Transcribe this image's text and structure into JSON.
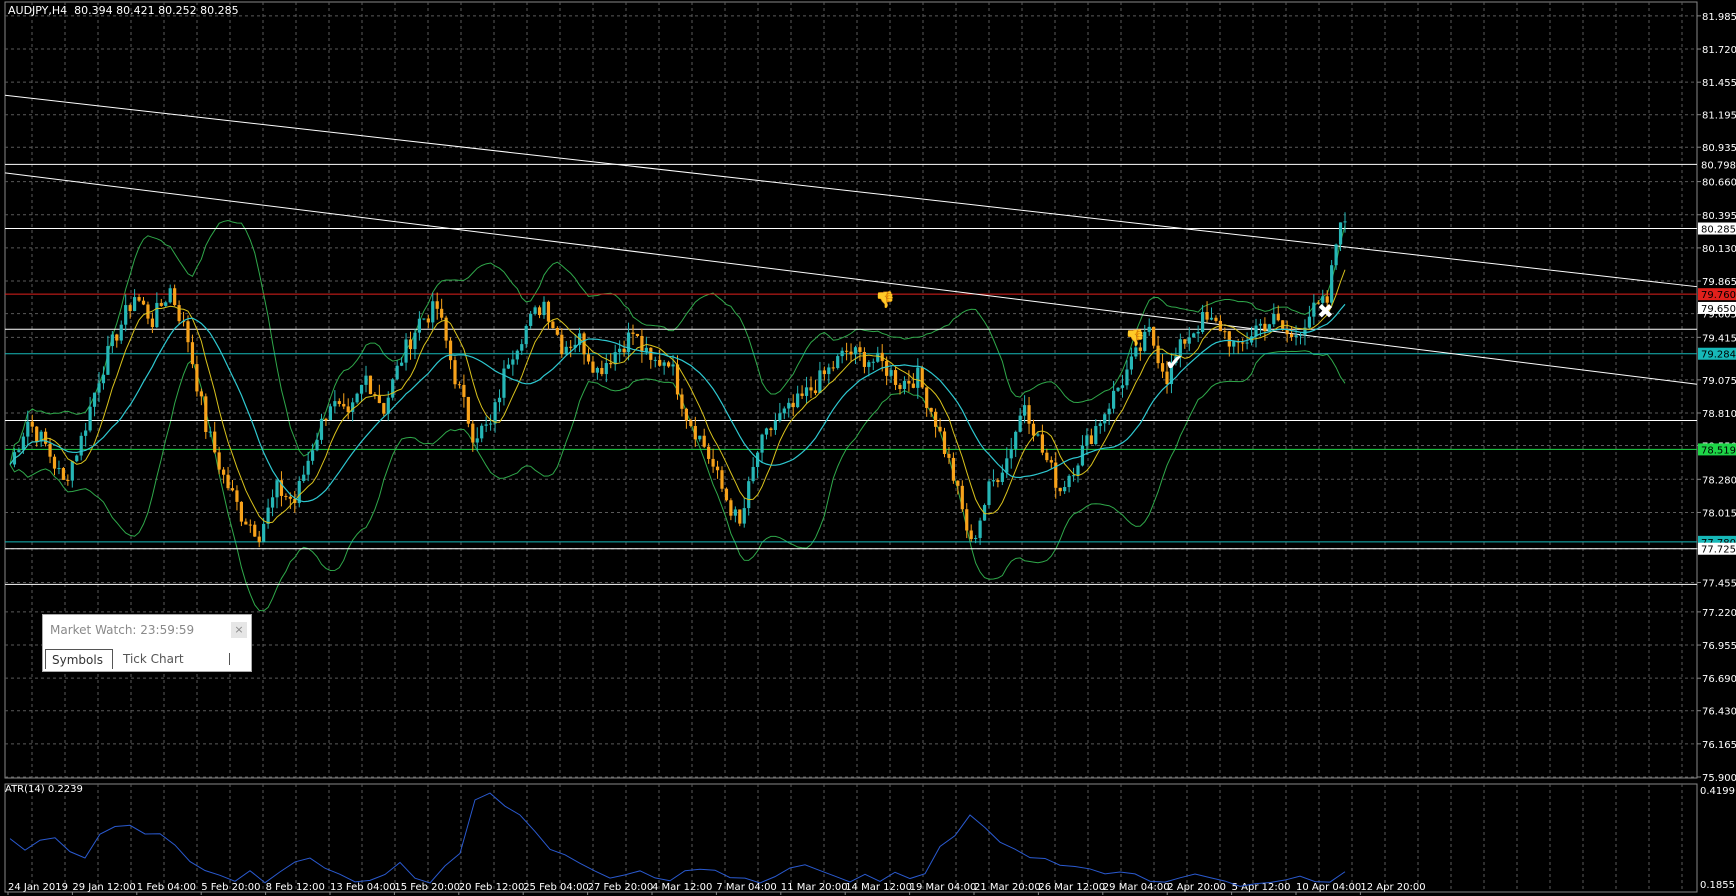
{
  "header": {
    "symbol": "AUDJPY,H4",
    "ohlc": "80.394 80.421 80.252 80.285"
  },
  "atr": {
    "label": "ATR(14) 0.2239",
    "max_label": "0.4199",
    "min_label": "0.1855"
  },
  "market_watch": {
    "title": "Market Watch: 23:59:59",
    "close": "×",
    "tabs": [
      "Symbols",
      "Tick Chart"
    ]
  },
  "colors": {
    "background": "#000000",
    "bull": "#26b6b6",
    "bear": "#f7a21b",
    "grid": "#5a5a5a",
    "bollinger": "#2fa84a",
    "ma_fast": "#d9c21c",
    "ma_slow": "#2ec8d0",
    "atr_line": "#2a5ad0",
    "resistance": "#e0201c",
    "support_green": "#1ed548",
    "support_cyan": "#16b8b8"
  },
  "icons": [
    "thumbs-down-icon",
    "thumbs-down-icon",
    "checkmark-icon",
    "cross-icon"
  ],
  "chart_data": {
    "type": "candlestick",
    "symbol": "AUDJPY",
    "timeframe": "H4",
    "ylim": [
      75.9,
      82.1
    ],
    "price_ticks": [
      "81.985",
      "81.720",
      "81.455",
      "81.195",
      "80.935",
      "80.660",
      "80.395",
      "80.130",
      "79.865",
      "79.605",
      "79.415",
      "79.075",
      "78.810",
      "78.550",
      "78.280",
      "78.015",
      "77.725",
      "77.455",
      "77.220",
      "76.955",
      "76.690",
      "76.430",
      "76.165",
      "75.900"
    ],
    "price_labels": [
      {
        "price": 80.798,
        "text": "80.798",
        "bg": "#000000",
        "fg": "#ffffff"
      },
      {
        "price": 80.285,
        "text": "80.285",
        "bg": "#ffffff",
        "fg": "#000000"
      },
      {
        "price": 79.76,
        "text": "79.760",
        "bg": "#e0201c",
        "fg": "#000000"
      },
      {
        "price": 79.65,
        "text": "79.650",
        "bg": "#ffffff",
        "fg": "#000000"
      },
      {
        "price": 79.284,
        "text": "79.284",
        "bg": "#16b8b8",
        "fg": "#000000"
      },
      {
        "price": 78.519,
        "text": "78.519",
        "bg": "#1ed548",
        "fg": "#000000"
      },
      {
        "price": 77.78,
        "text": "77.780",
        "bg": "#16b8b8",
        "fg": "#000000"
      },
      {
        "price": 77.725,
        "text": "77.725",
        "bg": "#ffffff",
        "fg": "#000000"
      }
    ],
    "x_labels": [
      "24 Jan 2019",
      "29 Jan 12:00",
      "1 Feb 04:00",
      "5 Feb 20:00",
      "8 Feb 12:00",
      "13 Feb 04:00",
      "15 Feb 20:00",
      "20 Feb 12:00",
      "25 Feb 04:00",
      "27 Feb 20:00",
      "4 Mar 12:00",
      "7 Mar 04:00",
      "11 Mar 20:00",
      "14 Mar 12:00",
      "19 Mar 04:00",
      "21 Mar 20:00",
      "26 Mar 12:00",
      "29 Mar 04:00",
      "2 Apr 20:00",
      "5 Apr 12:00",
      "10 Apr 04:00",
      "12 Apr 20:00"
    ],
    "horizontal_levels": [
      {
        "price": 80.798,
        "color": "#ffffff"
      },
      {
        "price": 80.285,
        "color": "#ffffff"
      },
      {
        "price": 79.76,
        "color": "#e0201c"
      },
      {
        "price": 79.48,
        "color": "#ffffff"
      },
      {
        "price": 79.284,
        "color": "#16b8b8"
      },
      {
        "price": 78.75,
        "color": "#ffffff"
      },
      {
        "price": 78.519,
        "color": "#1ed548"
      },
      {
        "price": 77.78,
        "color": "#16b8b8"
      },
      {
        "price": 77.725,
        "color": "#ffffff"
      },
      {
        "price": 77.44,
        "color": "#ffffff"
      }
    ],
    "trendlines": [
      {
        "from": [
          "24 Jan 2019",
          81.37
        ],
        "to": [
          "12 Apr 20:00",
          79.77
        ]
      },
      {
        "from": [
          "24 Jan 2019",
          80.73
        ],
        "to": [
          "12 Apr 20:00",
          79.33
        ]
      }
    ],
    "close_path": [
      [
        0,
        78.4
      ],
      [
        4,
        78.75
      ],
      [
        8,
        78.55
      ],
      [
        12,
        78.25
      ],
      [
        16,
        78.6
      ],
      [
        20,
        79.1
      ],
      [
        24,
        79.45
      ],
      [
        28,
        79.75
      ],
      [
        32,
        79.55
      ],
      [
        36,
        79.8
      ],
      [
        40,
        79.4
      ],
      [
        44,
        78.7
      ],
      [
        48,
        78.3
      ],
      [
        52,
        78.0
      ],
      [
        56,
        77.85
      ],
      [
        60,
        78.2
      ],
      [
        64,
        78.1
      ],
      [
        68,
        78.55
      ],
      [
        72,
        78.9
      ],
      [
        76,
        78.75
      ],
      [
        80,
        79.1
      ],
      [
        84,
        78.85
      ],
      [
        88,
        79.25
      ],
      [
        92,
        79.55
      ],
      [
        96,
        79.65
      ],
      [
        100,
        79.1
      ],
      [
        104,
        78.65
      ],
      [
        108,
        78.7
      ],
      [
        112,
        79.25
      ],
      [
        116,
        79.5
      ],
      [
        120,
        79.7
      ],
      [
        124,
        79.35
      ],
      [
        128,
        79.4
      ],
      [
        132,
        79.15
      ],
      [
        136,
        79.3
      ],
      [
        140,
        79.45
      ],
      [
        144,
        79.2
      ],
      [
        148,
        79.25
      ],
      [
        152,
        78.8
      ],
      [
        156,
        78.55
      ],
      [
        160,
        78.2
      ],
      [
        164,
        77.9
      ],
      [
        168,
        78.5
      ],
      [
        172,
        78.75
      ],
      [
        176,
        78.85
      ],
      [
        180,
        79.0
      ],
      [
        184,
        79.15
      ],
      [
        188,
        79.3
      ],
      [
        192,
        79.25
      ],
      [
        196,
        79.2
      ],
      [
        200,
        79.05
      ],
      [
        204,
        79.1
      ],
      [
        208,
        78.75
      ],
      [
        212,
        78.3
      ],
      [
        216,
        77.75
      ],
      [
        220,
        78.2
      ],
      [
        224,
        78.45
      ],
      [
        228,
        78.9
      ],
      [
        232,
        78.5
      ],
      [
        236,
        78.2
      ],
      [
        240,
        78.45
      ],
      [
        244,
        78.7
      ],
      [
        248,
        78.95
      ],
      [
        252,
        79.2
      ],
      [
        256,
        79.45
      ],
      [
        260,
        79.1
      ],
      [
        264,
        79.4
      ],
      [
        268,
        79.55
      ],
      [
        272,
        79.5
      ],
      [
        276,
        79.3
      ],
      [
        280,
        79.5
      ],
      [
        284,
        79.55
      ],
      [
        288,
        79.4
      ],
      [
        292,
        79.6
      ],
      [
        296,
        79.7
      ],
      [
        299,
        80.4
      ],
      [
        300,
        80.28
      ]
    ],
    "atr_range": [
      0.1855,
      0.4199
    ],
    "atr_values": [
      0.3,
      0.28,
      0.3,
      0.31,
      0.27,
      0.26,
      0.32,
      0.33,
      0.34,
      0.31,
      0.32,
      0.29,
      0.25,
      0.23,
      0.21,
      0.2,
      0.22,
      0.19,
      0.22,
      0.24,
      0.26,
      0.23,
      0.21,
      0.19,
      0.2,
      0.22,
      0.24,
      0.2,
      0.19,
      0.24,
      0.27,
      0.4,
      0.42,
      0.38,
      0.36,
      0.32,
      0.28,
      0.26,
      0.24,
      0.22,
      0.21,
      0.21,
      0.22,
      0.21,
      0.2,
      0.22,
      0.23,
      0.22,
      0.21,
      0.2,
      0.19,
      0.21,
      0.23,
      0.24,
      0.22,
      0.21,
      0.2,
      0.21,
      0.2,
      0.22,
      0.21,
      0.22,
      0.28,
      0.31,
      0.36,
      0.33,
      0.3,
      0.28,
      0.26,
      0.25,
      0.24,
      0.24,
      0.23,
      0.22,
      0.22,
      0.21,
      0.2,
      0.2,
      0.21,
      0.22,
      0.21,
      0.2,
      0.19,
      0.195,
      0.19,
      0.2,
      0.21,
      0.2,
      0.19,
      0.22
    ]
  }
}
